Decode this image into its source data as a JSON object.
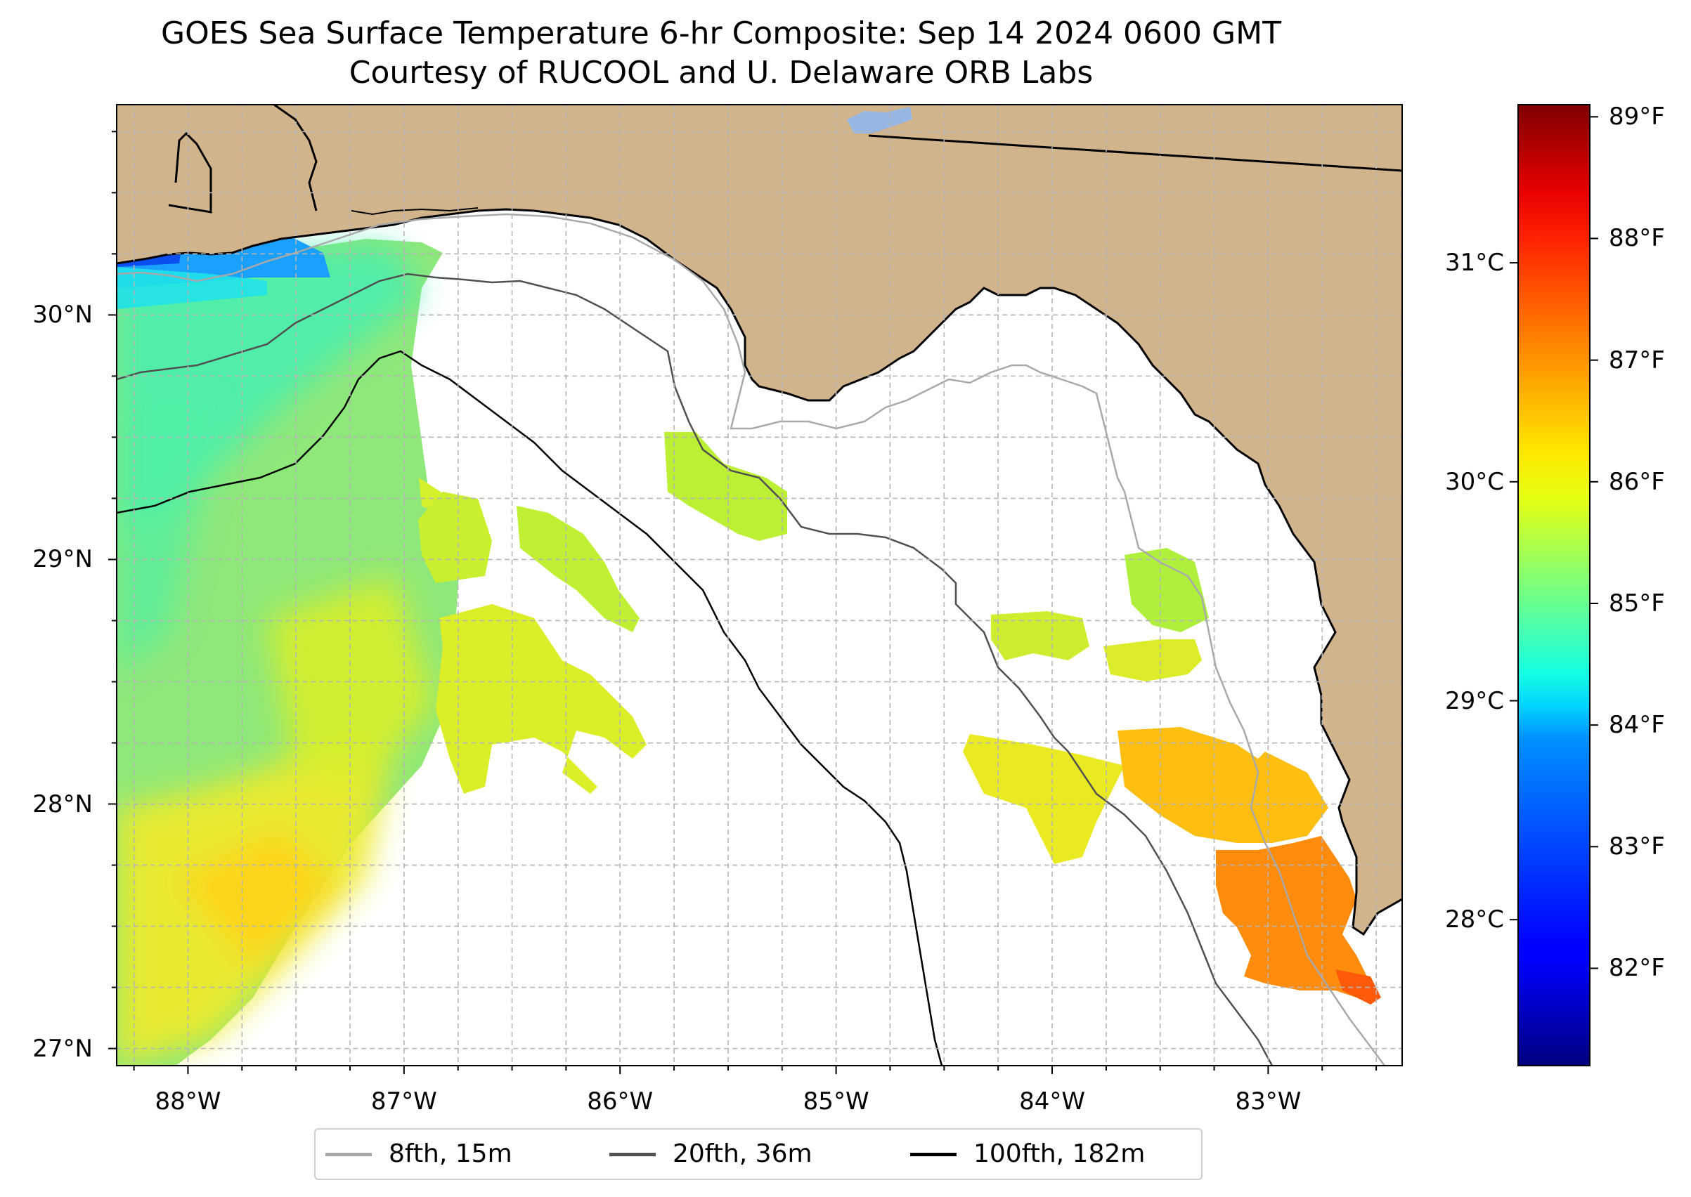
{
  "title": {
    "line1": "GOES Sea Surface Temperature 6-hr Composite: Sep 14 2024 0600 GMT",
    "line2": "Courtesy of RUCOOL and U. Delaware ORB Labs"
  },
  "map": {
    "extent": {
      "lon_min": -88.33,
      "lon_max": -82.38,
      "lat_min": 26.93,
      "lat_max": 30.86
    },
    "lat_ticks": [
      {
        "value": 30,
        "label": "30°N"
      },
      {
        "value": 29,
        "label": "29°N"
      },
      {
        "value": 28,
        "label": "28°N"
      },
      {
        "value": 27,
        "label": "27°N"
      }
    ],
    "lon_ticks": [
      {
        "value": -88,
        "label": "88°W"
      },
      {
        "value": -87,
        "label": "87°W"
      },
      {
        "value": -86,
        "label": "86°W"
      },
      {
        "value": -85,
        "label": "85°W"
      },
      {
        "value": -84,
        "label": "84°W"
      },
      {
        "value": -83,
        "label": "83°W"
      }
    ],
    "gridlines": "dashed",
    "land_color": "#d2b48c",
    "lake_color": "#97b6e1"
  },
  "colorbar": {
    "colormap": "jet",
    "range_f": [
      81.2,
      89.1
    ],
    "celsius_ticks": [
      {
        "value": 31,
        "label": "31°C"
      },
      {
        "value": 30,
        "label": "30°C"
      },
      {
        "value": 29,
        "label": "29°C"
      },
      {
        "value": 28,
        "label": "28°C"
      }
    ],
    "fahrenheit_ticks": [
      {
        "value": 89,
        "label": "89°F"
      },
      {
        "value": 88,
        "label": "88°F"
      },
      {
        "value": 87,
        "label": "87°F"
      },
      {
        "value": 86,
        "label": "86°F"
      },
      {
        "value": 85,
        "label": "85°F"
      },
      {
        "value": 84,
        "label": "84°F"
      },
      {
        "value": 83,
        "label": "83°F"
      },
      {
        "value": 82,
        "label": "82°F"
      }
    ]
  },
  "legend": {
    "placement": "bottom-center",
    "items": [
      {
        "label": "8fth, 15m",
        "color": "#a9a9a9"
      },
      {
        "label": "20fth, 36m",
        "color": "#505050"
      },
      {
        "label": "100fth, 182m",
        "color": "#000000"
      }
    ]
  }
}
